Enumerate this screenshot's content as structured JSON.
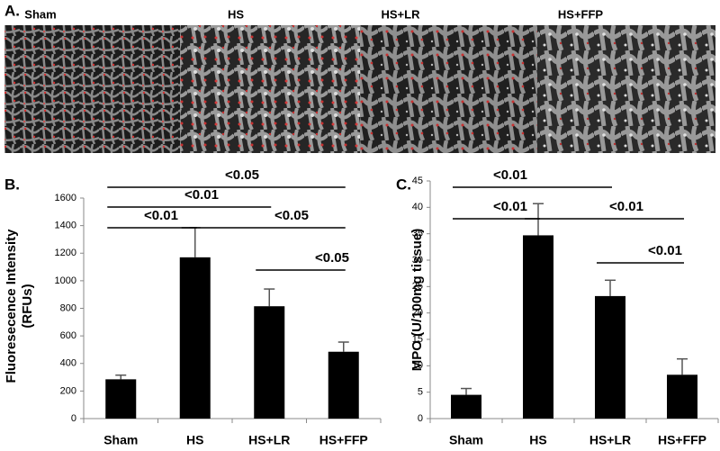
{
  "panel_a": {
    "label": "A.",
    "images": [
      "Sham",
      "HS",
      "HS+LR",
      "HS+FFP"
    ]
  },
  "chart_data": [
    {
      "type": "bar",
      "panel_label": "B.",
      "y_label": [
        "Fluoresecence Intensity",
        "(RFUs)"
      ],
      "categories": [
        "Sham",
        "HS",
        "HS+LR",
        "HS+FFP"
      ],
      "values": [
        285,
        1170,
        815,
        485
      ],
      "errors": [
        30,
        215,
        125,
        70
      ],
      "color": "#000000",
      "ylim": [
        0,
        1600
      ],
      "yticks": [
        0,
        200,
        400,
        600,
        800,
        1000,
        1200,
        1400,
        1600
      ],
      "annotations": [
        "<0.05",
        "<0.01",
        "<0.01",
        "<0.05",
        "<0.05"
      ]
    },
    {
      "type": "bar",
      "panel_label": "C.",
      "y_label": [
        "MPO (U/100mg tissue)"
      ],
      "categories": [
        "Sham",
        "HS",
        "HS+LR",
        "HS+FFP"
      ],
      "values": [
        4.5,
        34.7,
        23.2,
        8.3
      ],
      "errors": [
        1.2,
        6,
        3,
        3
      ],
      "color": "#000000",
      "ylim": [
        0,
        45
      ],
      "yticks": [
        0,
        5,
        10,
        15,
        20,
        25,
        30,
        35,
        40,
        45
      ],
      "annotations": [
        "<0.01",
        "<0.01",
        "<0.01",
        "<0.01"
      ]
    }
  ]
}
